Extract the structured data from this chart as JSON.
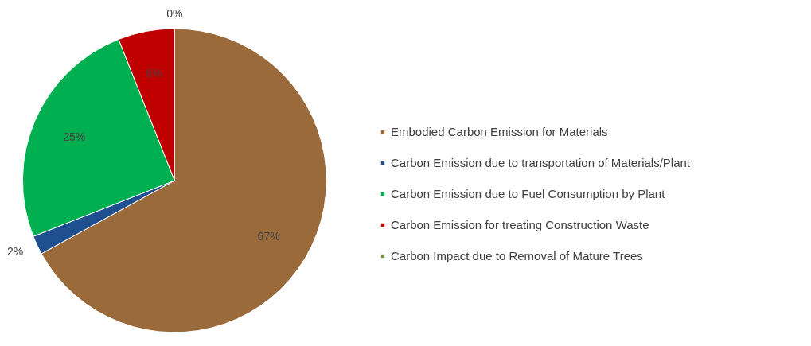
{
  "chart_data": {
    "type": "pie",
    "categories": [
      "Embodied Carbon Emission for Materials",
      "Carbon Emission due to transportation of Materials/Plant",
      "Carbon Emission due to Fuel Consumption by Plant",
      "Carbon Emission for treating Construction Waste",
      "Carbon Impact due to Removal of Mature Trees"
    ],
    "values": [
      67,
      2,
      25,
      6,
      0
    ],
    "colors": [
      "#9b6a3a",
      "#1f4f8f",
      "#00b050",
      "#c00000",
      "#77933c"
    ],
    "value_labels": [
      "67%",
      "2%",
      "25%",
      "6%",
      "0%"
    ],
    "legend": "right"
  }
}
